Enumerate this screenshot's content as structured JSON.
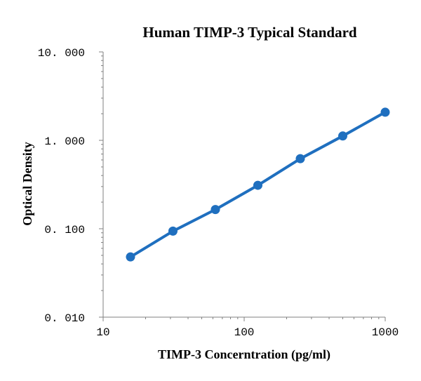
{
  "chart_data": {
    "type": "line",
    "title": "Human TIMP-3 Typical Standard",
    "xlabel": "TIMP-3 Concerntration (pg/ml)",
    "ylabel": "Optical Density",
    "x_scale": "log",
    "y_scale": "log",
    "xlim": [
      10,
      1000
    ],
    "ylim": [
      0.01,
      10
    ],
    "x_ticks": [
      "10",
      "100",
      "1000"
    ],
    "y_ticks": [
      "10. 000",
      "1. 000",
      "0. 100",
      "0. 010"
    ],
    "grid": false,
    "legend": "none",
    "series": [
      {
        "x": [
          15.625,
          31.25,
          62.5,
          125,
          250,
          500,
          1000
        ],
        "y": [
          0.048,
          0.094,
          0.165,
          0.31,
          0.62,
          1.12,
          2.08
        ]
      }
    ],
    "colors": {
      "series": "#1f6fbf"
    }
  }
}
